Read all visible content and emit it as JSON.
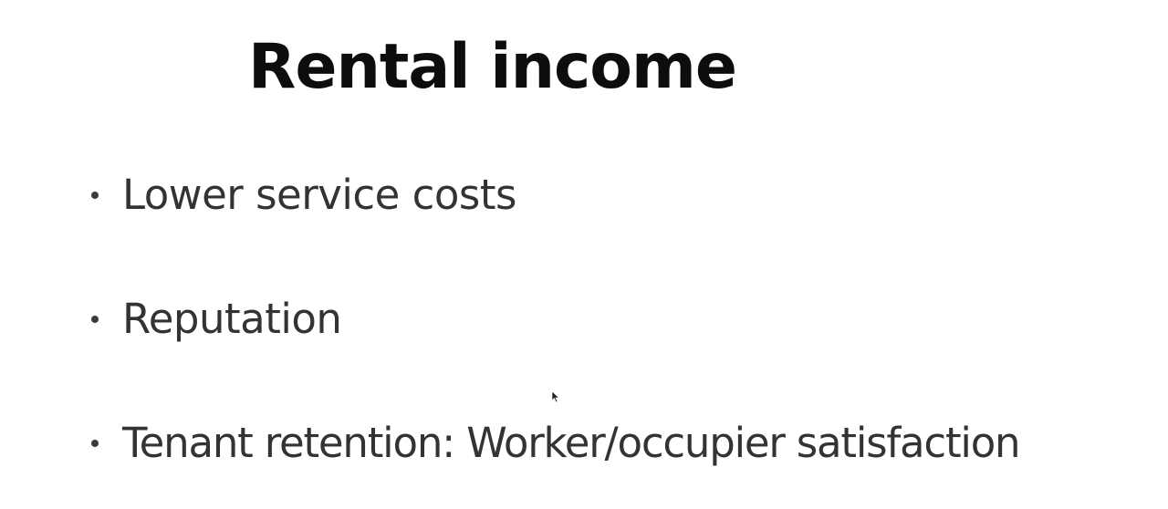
{
  "slide": {
    "title": "Rental income",
    "bullets": [
      "Lower service costs",
      "Reputation",
      "Tenant retention: Worker/occupier satisfaction"
    ]
  },
  "icons": {
    "cursor": "mouse-pointer-icon",
    "bullet": "bullet-dot-icon"
  },
  "colors": {
    "background": "#ffffff",
    "title": "#0d0d0d",
    "body_text": "#333333"
  }
}
